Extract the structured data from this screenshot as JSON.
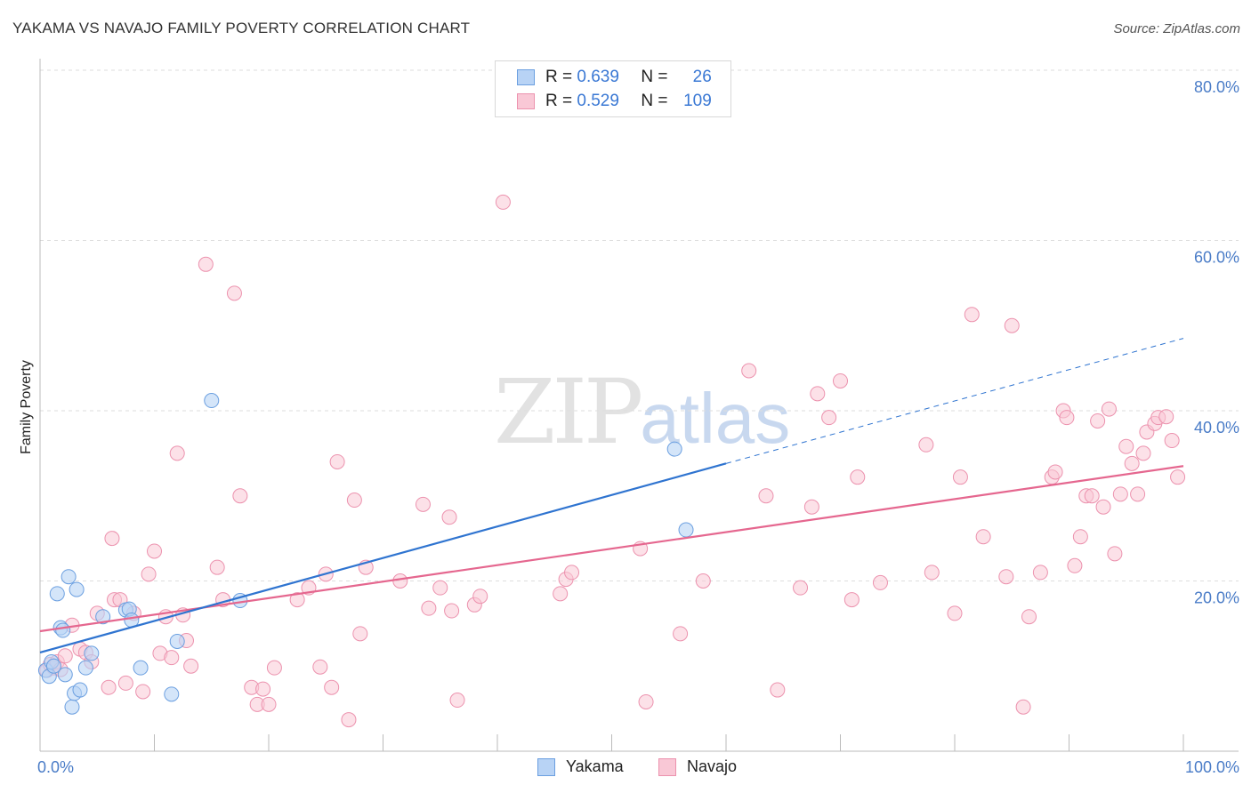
{
  "title": "YAKAMA VS NAVAJO FAMILY POVERTY CORRELATION CHART",
  "source": "Source: ZipAtlas.com",
  "watermark": {
    "zip": "ZIP",
    "atlas": "atlas"
  },
  "legend": {
    "rows": [
      {
        "r_label": "R =",
        "r_value": "0.639",
        "n_label": "N =",
        "n_value": "26",
        "series": "Yakama"
      },
      {
        "r_label": "R =",
        "r_value": "0.529",
        "n_label": "N =",
        "n_value": "109",
        "series": "Navajo"
      }
    ]
  },
  "colors": {
    "yakama_fill": "#b8d3f5",
    "yakama_stroke": "#6b9fe0",
    "yakama_line": "#2f74d0",
    "navajo_fill": "#f9c8d6",
    "navajo_stroke": "#ec92ae",
    "navajo_line": "#e5678f",
    "grid": "#dedede",
    "axis": "#bbbbbb"
  },
  "chart_data": {
    "type": "scatter",
    "title": "YAKAMA VS NAVAJO FAMILY POVERTY CORRELATION CHART",
    "xlabel": "",
    "ylabel": "Family Poverty",
    "xlim": [
      0,
      100
    ],
    "ylim": [
      0,
      80
    ],
    "x_tick_labels": [
      "0.0%",
      "100.0%"
    ],
    "y_tick_labels": [
      "20.0%",
      "40.0%",
      "60.0%",
      "80.0%"
    ],
    "y_ticks": [
      20,
      40,
      60,
      80
    ],
    "series": [
      {
        "name": "Yakama",
        "points": [
          [
            0.5,
            9.5
          ],
          [
            0.8,
            8.8
          ],
          [
            1.0,
            10.5
          ],
          [
            1.2,
            10.0
          ],
          [
            1.5,
            18.5
          ],
          [
            1.8,
            14.5
          ],
          [
            2.0,
            14.2
          ],
          [
            2.2,
            9.0
          ],
          [
            2.5,
            20.5
          ],
          [
            2.8,
            5.2
          ],
          [
            3.0,
            6.8
          ],
          [
            3.2,
            19.0
          ],
          [
            3.5,
            7.2
          ],
          [
            4.0,
            9.8
          ],
          [
            4.5,
            11.5
          ],
          [
            5.5,
            15.8
          ],
          [
            7.5,
            16.6
          ],
          [
            7.8,
            16.7
          ],
          [
            8.0,
            15.4
          ],
          [
            8.8,
            9.8
          ],
          [
            11.5,
            6.7
          ],
          [
            12.0,
            12.9
          ],
          [
            15.0,
            41.2
          ],
          [
            17.5,
            17.7
          ],
          [
            55.5,
            35.5
          ],
          [
            56.5,
            26.0
          ]
        ],
        "trend": {
          "x": [
            0,
            60
          ],
          "y": [
            11.6,
            33.8
          ],
          "dashed_to": [
            100,
            48.5
          ]
        }
      },
      {
        "name": "Navajo",
        "points": [
          [
            0.6,
            9.5
          ],
          [
            0.9,
            10.2
          ],
          [
            1.2,
            9.8
          ],
          [
            1.5,
            10.5
          ],
          [
            1.8,
            9.6
          ],
          [
            2.2,
            11.2
          ],
          [
            2.8,
            14.8
          ],
          [
            3.5,
            12.0
          ],
          [
            4.0,
            11.6
          ],
          [
            4.5,
            10.5
          ],
          [
            5.0,
            16.2
          ],
          [
            6.0,
            7.5
          ],
          [
            6.5,
            17.8
          ],
          [
            6.3,
            25.0
          ],
          [
            7.0,
            17.8
          ],
          [
            7.5,
            8.0
          ],
          [
            8.2,
            16.2
          ],
          [
            9.0,
            7.0
          ],
          [
            9.5,
            20.8
          ],
          [
            10.0,
            23.5
          ],
          [
            10.5,
            11.5
          ],
          [
            11.0,
            15.8
          ],
          [
            11.5,
            11.0
          ],
          [
            12.0,
            35.0
          ],
          [
            12.5,
            16.0
          ],
          [
            12.8,
            13.0
          ],
          [
            13.2,
            10.0
          ],
          [
            14.5,
            57.2
          ],
          [
            15.5,
            21.6
          ],
          [
            16.0,
            17.8
          ],
          [
            17.0,
            53.8
          ],
          [
            17.5,
            30.0
          ],
          [
            18.5,
            7.5
          ],
          [
            19.0,
            5.5
          ],
          [
            19.5,
            7.3
          ],
          [
            20.0,
            5.5
          ],
          [
            20.5,
            9.8
          ],
          [
            22.5,
            17.8
          ],
          [
            23.5,
            19.2
          ],
          [
            24.5,
            9.9
          ],
          [
            25.0,
            20.8
          ],
          [
            25.5,
            7.5
          ],
          [
            26.0,
            34.0
          ],
          [
            27.0,
            3.7
          ],
          [
            27.5,
            29.5
          ],
          [
            28.0,
            13.8
          ],
          [
            28.5,
            21.6
          ],
          [
            31.5,
            20.0
          ],
          [
            33.5,
            29.0
          ],
          [
            34.0,
            16.8
          ],
          [
            35.0,
            19.2
          ],
          [
            35.8,
            27.5
          ],
          [
            36.0,
            16.5
          ],
          [
            36.5,
            6.0
          ],
          [
            38.0,
            17.2
          ],
          [
            38.5,
            18.2
          ],
          [
            40.5,
            64.5
          ],
          [
            45.5,
            18.5
          ],
          [
            46.0,
            20.2
          ],
          [
            46.5,
            21.0
          ],
          [
            52.5,
            23.8
          ],
          [
            53.0,
            5.8
          ],
          [
            56.0,
            13.8
          ],
          [
            58.0,
            20.0
          ],
          [
            62.0,
            44.7
          ],
          [
            63.5,
            30.0
          ],
          [
            64.5,
            7.2
          ],
          [
            66.5,
            19.2
          ],
          [
            67.5,
            28.7
          ],
          [
            68.0,
            42.0
          ],
          [
            69.0,
            39.2
          ],
          [
            70.0,
            43.5
          ],
          [
            71.0,
            17.8
          ],
          [
            71.5,
            32.2
          ],
          [
            73.5,
            19.8
          ],
          [
            77.5,
            36.0
          ],
          [
            78.0,
            21.0
          ],
          [
            80.0,
            16.2
          ],
          [
            80.5,
            32.2
          ],
          [
            81.5,
            51.3
          ],
          [
            82.5,
            25.2
          ],
          [
            84.5,
            20.5
          ],
          [
            85.0,
            50.0
          ],
          [
            86.0,
            5.2
          ],
          [
            86.5,
            15.8
          ],
          [
            87.5,
            21.0
          ],
          [
            88.5,
            32.2
          ],
          [
            88.8,
            32.8
          ],
          [
            89.5,
            40.0
          ],
          [
            89.8,
            39.2
          ],
          [
            90.5,
            21.8
          ],
          [
            91.0,
            25.2
          ],
          [
            91.5,
            30.0
          ],
          [
            92.0,
            30.0
          ],
          [
            92.5,
            38.8
          ],
          [
            93.0,
            28.7
          ],
          [
            93.5,
            40.2
          ],
          [
            94.0,
            23.2
          ],
          [
            94.5,
            30.2
          ],
          [
            95.0,
            35.8
          ],
          [
            95.5,
            33.8
          ],
          [
            96.0,
            30.2
          ],
          [
            96.5,
            35.0
          ],
          [
            96.8,
            37.5
          ],
          [
            97.5,
            38.5
          ],
          [
            97.8,
            39.2
          ],
          [
            98.5,
            39.3
          ],
          [
            99.0,
            36.5
          ],
          [
            99.5,
            32.2
          ]
        ],
        "trend": {
          "x": [
            0,
            100
          ],
          "y": [
            14.1,
            33.5
          ]
        }
      }
    ]
  }
}
